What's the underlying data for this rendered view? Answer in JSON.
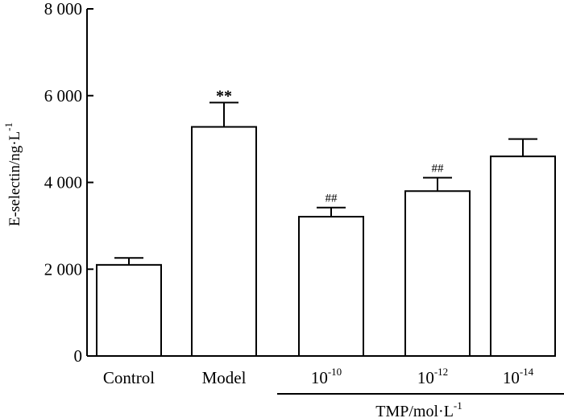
{
  "chart_data": {
    "type": "bar",
    "categories": [
      {
        "id": "control",
        "label": "Control"
      },
      {
        "id": "model",
        "label": "Model"
      },
      {
        "id": "tmp-10",
        "base": "10",
        "exp": "-10"
      },
      {
        "id": "tmp-12",
        "base": "10",
        "exp": "-12"
      },
      {
        "id": "tmp-14",
        "base": "10",
        "exp": "-14"
      }
    ],
    "values": [
      2100,
      5280,
      3210,
      3800,
      4600
    ],
    "errors": [
      160,
      560,
      210,
      310,
      400
    ],
    "annotations": [
      "",
      "**",
      "##",
      "##",
      ""
    ],
    "ylabel": {
      "text": "E-selectin/ng·L",
      "sup": "-1"
    },
    "xlabel": {
      "text": "TMP/mol·L",
      "sup": "-1"
    },
    "xlabel_spans_categories": [
      2,
      4
    ],
    "ylim": [
      0,
      8000
    ],
    "yticks": [
      {
        "value": 0,
        "label": "0"
      },
      {
        "value": 2000,
        "label": "2 000"
      },
      {
        "value": 4000,
        "label": "4 000"
      },
      {
        "value": 6000,
        "label": "6 000"
      },
      {
        "value": 8000,
        "label": "8 000"
      }
    ],
    "bar_fill": "#ffffff",
    "bar_stroke": "#000000",
    "grid": false,
    "legend": "none"
  }
}
